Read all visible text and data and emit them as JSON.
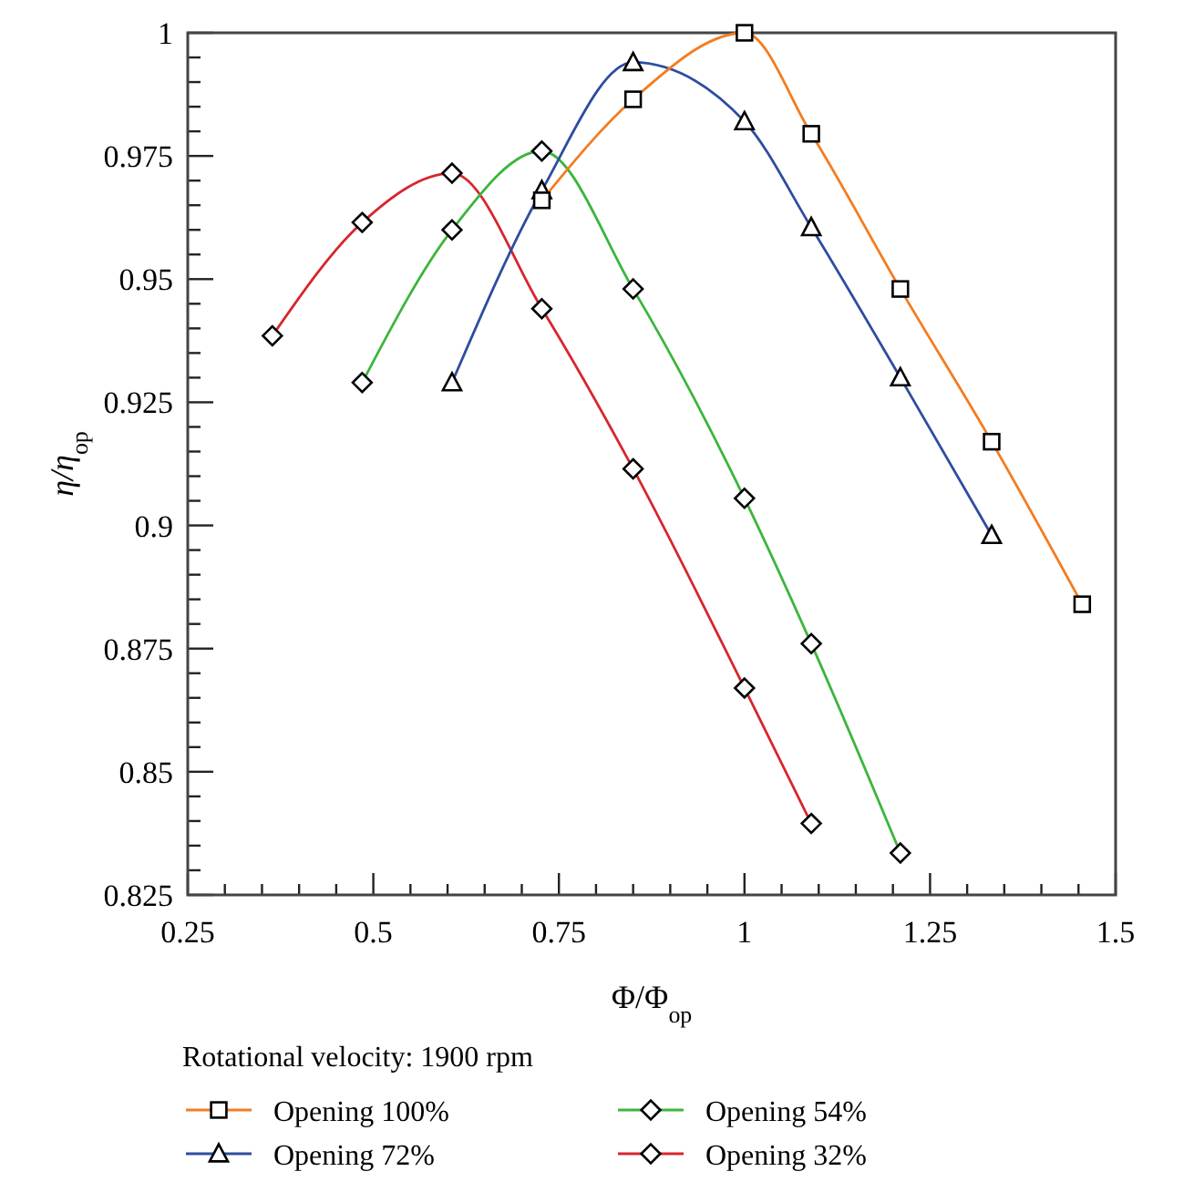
{
  "chart_data": {
    "type": "line",
    "xlabel": "Φ/Φ$_{op}$",
    "ylabel": "η/η$_{op}$",
    "legend_title": "Rotational velocity: 1900 rpm",
    "legend": "bottom",
    "grid": false,
    "line_style": "solid",
    "xlim": [
      0.25,
      1.5
    ],
    "xticks": [
      0.25,
      {
        "value": 0.3,
        "label": null
      },
      {
        "value": 0.35,
        "label": null
      },
      {
        "value": 0.4,
        "label": null
      },
      {
        "value": 0.45,
        "label": null
      },
      0.5,
      {
        "value": 0.55,
        "label": null
      },
      {
        "value": 0.6,
        "label": null
      },
      {
        "value": 0.65,
        "label": null
      },
      {
        "value": 0.7,
        "label": null
      },
      0.75,
      {
        "value": 0.8,
        "label": null
      },
      {
        "value": 0.85,
        "label": null
      },
      {
        "value": 0.9,
        "label": null
      },
      {
        "value": 0.95,
        "label": null
      },
      1,
      {
        "value": 1.05,
        "label": null
      },
      {
        "value": 1.1,
        "label": null
      },
      {
        "value": 1.15,
        "label": null
      },
      {
        "value": 1.2,
        "label": null
      },
      1.25,
      {
        "value": 1.3,
        "label": null
      },
      {
        "value": 1.35,
        "label": null
      },
      {
        "value": 1.4,
        "label": null
      },
      {
        "value": 1.45,
        "label": null
      },
      1.5
    ],
    "ylim": [
      0.825,
      1
    ],
    "yticks": [
      0.825,
      {
        "value": 0.83,
        "label": null
      },
      {
        "value": 0.835,
        "label": null
      },
      {
        "value": 0.84,
        "label": null
      },
      {
        "value": 0.845,
        "label": null
      },
      0.85,
      {
        "value": 0.855,
        "label": null
      },
      {
        "value": 0.86,
        "label": null
      },
      {
        "value": 0.865,
        "label": null
      },
      {
        "value": 0.87,
        "label": null
      },
      0.875,
      {
        "value": 0.88,
        "label": null
      },
      {
        "value": 0.885,
        "label": null
      },
      {
        "value": 0.89,
        "label": null
      },
      {
        "value": 0.895,
        "label": null
      },
      0.9,
      {
        "value": 0.905,
        "label": null
      },
      {
        "value": 0.91,
        "label": null
      },
      {
        "value": 0.915,
        "label": null
      },
      {
        "value": 0.92,
        "label": null
      },
      0.925,
      {
        "value": 0.93,
        "label": null
      },
      {
        "value": 0.935,
        "label": null
      },
      {
        "value": 0.94,
        "label": null
      },
      {
        "value": 0.945,
        "label": null
      },
      0.95,
      {
        "value": 0.955,
        "label": null
      },
      {
        "value": 0.96,
        "label": null
      },
      {
        "value": 0.965,
        "label": null
      },
      {
        "value": 0.97,
        "label": null
      },
      0.975,
      {
        "value": 0.98,
        "label": null
      },
      {
        "value": 0.985,
        "label": null
      },
      {
        "value": 0.99,
        "label": null
      },
      {
        "value": 0.995,
        "label": null
      },
      1
    ],
    "series": [
      {
        "name": "Opening 100%",
        "color": "#f47c20",
        "marker": "square",
        "x": [
          0.727,
          0.85,
          1.0,
          1.09,
          1.21,
          1.333,
          1.455
        ],
        "values": [
          0.966,
          0.9865,
          1.0,
          0.9795,
          0.948,
          0.917,
          0.884
        ]
      },
      {
        "name": "Opening 72%",
        "color": "#2e4da0",
        "marker": "triangle",
        "x": [
          0.606,
          0.727,
          0.85,
          1.0,
          1.09,
          1.21,
          1.333
        ],
        "values": [
          0.929,
          0.968,
          0.994,
          0.982,
          0.9605,
          0.93,
          0.898
        ]
      },
      {
        "name": "Opening 54%",
        "color": "#3cb53c",
        "marker": "diamond",
        "x": [
          0.485,
          0.606,
          0.727,
          0.85,
          1.0,
          1.09,
          1.21
        ],
        "values": [
          0.929,
          0.96,
          0.976,
          0.948,
          0.9055,
          0.876,
          0.8335
        ]
      },
      {
        "name": "Opening 32%",
        "color": "#d7262e",
        "marker": "diamond",
        "x": [
          0.364,
          0.485,
          0.606,
          0.727,
          0.85,
          1.0,
          1.09
        ],
        "values": [
          0.9385,
          0.9615,
          0.9715,
          0.944,
          0.9115,
          0.867,
          0.8395
        ]
      }
    ]
  }
}
